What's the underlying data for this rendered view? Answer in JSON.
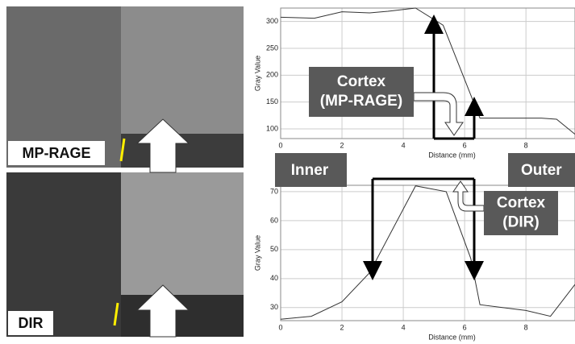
{
  "image_labels": [
    "MP-RAGE",
    "DIR"
  ],
  "region_labels": [
    "Inner",
    "Outer"
  ],
  "chart_data": [
    {
      "type": "line",
      "xlabel": "Distance (mm)",
      "ylabel": "Gray Value",
      "color": "#333333",
      "grid": true,
      "x": [
        0,
        1.1,
        2.0,
        2.9,
        3.5,
        4.4,
        5.3,
        6.5,
        7.5,
        8.5,
        9.0,
        9.6
      ],
      "values": [
        308,
        306,
        318,
        316,
        319,
        325,
        293,
        120,
        120,
        120,
        118,
        90
      ],
      "xlim": [
        0,
        9.6
      ],
      "ylim": [
        82,
        325
      ],
      "xticks": [
        0,
        2,
        4,
        6,
        8
      ],
      "yticks": [
        100,
        150,
        200,
        250,
        300
      ],
      "annotation": [
        "Cortex",
        "(MP-RAGE)"
      ]
    },
    {
      "type": "line",
      "xlabel": "Distance (mm)",
      "ylabel": "Gray Value",
      "color": "#333333",
      "grid": true,
      "x": [
        0,
        1.0,
        2.0,
        2.9,
        4.4,
        5.4,
        6.2,
        6.5,
        8.0,
        8.8,
        9.6
      ],
      "values": [
        26,
        27,
        32,
        42,
        72,
        70,
        47,
        31,
        29,
        27,
        38
      ],
      "xlim": [
        0,
        9.6
      ],
      "ylim": [
        25.5,
        72.2
      ],
      "xticks": [
        0,
        2,
        4,
        6,
        8
      ],
      "yticks": [
        30,
        40,
        50,
        60,
        70
      ],
      "annotation": [
        "Cortex",
        "(DIR)"
      ]
    }
  ]
}
